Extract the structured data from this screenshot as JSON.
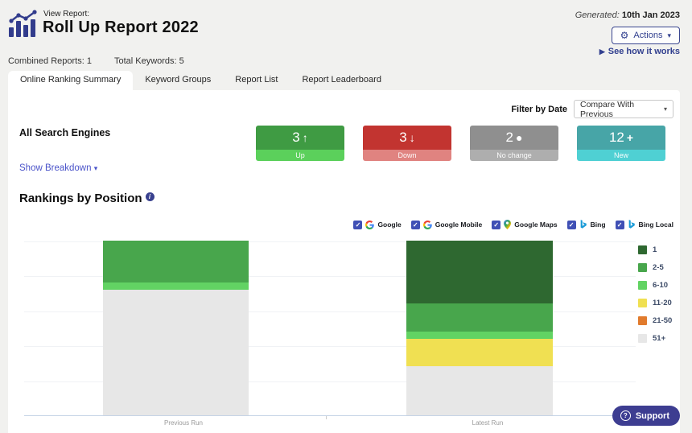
{
  "header": {
    "view_report_label": "View Report:",
    "title": "Roll Up Report 2022",
    "generated_label": "Generated:",
    "generated_date": "10th Jan 2023",
    "actions_label": "Actions",
    "see_how_link": "See how it works",
    "combined_reports": "Combined Reports: 1",
    "total_keywords": "Total Keywords: 5"
  },
  "tabs": [
    {
      "label": "Online Ranking Summary",
      "active": true
    },
    {
      "label": "Keyword Groups",
      "active": false
    },
    {
      "label": "Report List",
      "active": false
    },
    {
      "label": "Report Leaderboard",
      "active": false
    }
  ],
  "filter": {
    "label": "Filter by Date",
    "selected": "Compare With Previous"
  },
  "summary": {
    "engine_label": "All Search Engines",
    "show_breakdown_label": "Show Breakdown",
    "cards": [
      {
        "value": "3",
        "symbol": "↑",
        "label": "Up",
        "top_color": "#3f9b43",
        "strip_color": "#5bd05b"
      },
      {
        "value": "3",
        "symbol": "↓",
        "label": "Down",
        "top_color": "#c23430",
        "strip_color": "#e08380"
      },
      {
        "value": "2",
        "symbol": "●",
        "label": "No change",
        "top_color": "#8f8f8f",
        "strip_color": "#aeaeae"
      },
      {
        "value": "12",
        "symbol": "+",
        "label": "New",
        "top_color": "#47a5a7",
        "strip_color": "#4fd0d3"
      }
    ]
  },
  "chart": {
    "heading": "Rankings by Position",
    "engines": [
      {
        "label": "Google",
        "icon": "google",
        "checked": true
      },
      {
        "label": "Google Mobile",
        "icon": "google",
        "checked": true
      },
      {
        "label": "Google Maps",
        "icon": "maps",
        "checked": true
      },
      {
        "label": "Bing",
        "icon": "bing",
        "checked": true
      },
      {
        "label": "Bing Local",
        "icon": "bing",
        "checked": true
      }
    ]
  },
  "chart_data": {
    "type": "bar",
    "stacked": true,
    "title": "Rankings by Position",
    "categories": [
      "Previous Run",
      "Latest Run"
    ],
    "series": [
      {
        "name": "1",
        "color": "#2e6830",
        "values": [
          0,
          9
        ]
      },
      {
        "name": "2-5",
        "color": "#48a64c",
        "values": [
          6,
          4
        ]
      },
      {
        "name": "6-10",
        "color": "#62d363",
        "values": [
          1,
          1
        ]
      },
      {
        "name": "11-20",
        "color": "#f0e052",
        "values": [
          0,
          4
        ]
      },
      {
        "name": "21-50",
        "color": "#e17b2d",
        "values": [
          0,
          0
        ]
      },
      {
        "name": "51+",
        "color": "#e7e7e7",
        "values": [
          18,
          7
        ]
      }
    ],
    "ylim": [
      0,
      25
    ],
    "gridline_step": 5,
    "grid": true,
    "y_axis_labels": false,
    "legend_position": "right"
  },
  "icons": {
    "gear": "⚙",
    "caret": "▾",
    "play": "▶",
    "info": "i",
    "check": "✓",
    "question": "?"
  },
  "support": {
    "label": "Support"
  }
}
